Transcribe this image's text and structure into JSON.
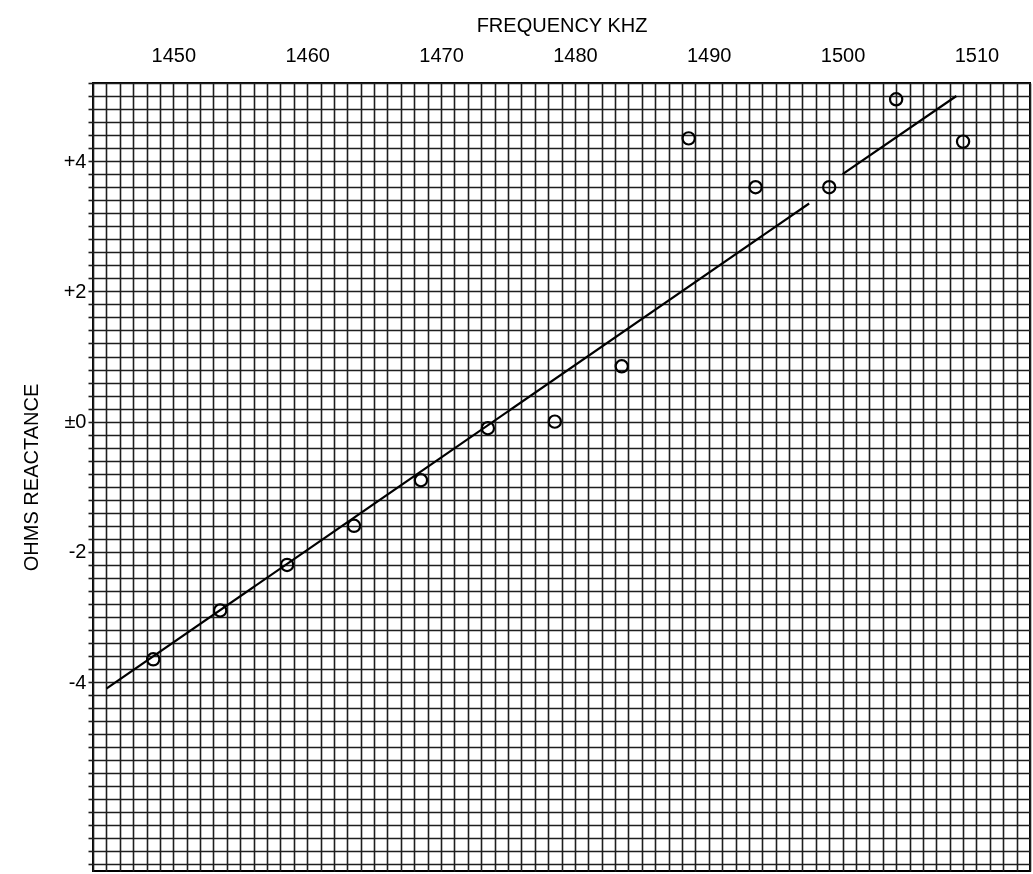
{
  "chart_data": {
    "type": "scatter",
    "xlabel": "FREQUENCY KHZ",
    "ylabel": "OHMS REACTANCE",
    "series": [
      {
        "color": "#000000",
        "marker": "circle",
        "x": [
          1448.5,
          1453.5,
          1458.5,
          1463.5,
          1468.5,
          1473.5,
          1478.5,
          1483.5,
          1488.5,
          1493.5,
          1499,
          1504,
          1509
        ],
        "values": [
          -3.65,
          -2.9,
          -2.2,
          -1.6,
          -0.9,
          -0.1,
          0,
          0.85,
          4.35,
          3.6,
          3.6,
          4.95,
          4.3
        ]
      },
      {
        "type": "line",
        "color": "#000000",
        "marker": "none",
        "line_style": "solid",
        "x": [
          1445,
          1497.5,
          1499,
          1500,
          1508.5
        ],
        "values": [
          -4.1,
          3.35,
          null,
          3.8,
          5.0
        ]
      }
    ],
    "xlim": [
      1444,
      1514
    ],
    "ylim": [
      -6.9,
      5.2
    ],
    "xticks": [
      {
        "value": 1444,
        "label": null
      },
      {
        "value": 1445,
        "label": null
      },
      {
        "value": 1446,
        "label": null
      },
      {
        "value": 1447,
        "label": null
      },
      {
        "value": 1448,
        "label": null
      },
      {
        "value": 1449,
        "label": null
      },
      1450,
      {
        "value": 1451,
        "label": null
      },
      {
        "value": 1452,
        "label": null
      },
      {
        "value": 1453,
        "label": null
      },
      {
        "value": 1454,
        "label": null
      },
      {
        "value": 1455,
        "label": null
      },
      {
        "value": 1456,
        "label": null
      },
      {
        "value": 1457,
        "label": null
      },
      {
        "value": 1458,
        "label": null
      },
      {
        "value": 1459,
        "label": null
      },
      1460,
      {
        "value": 1461,
        "label": null
      },
      {
        "value": 1462,
        "label": null
      },
      {
        "value": 1463,
        "label": null
      },
      {
        "value": 1464,
        "label": null
      },
      {
        "value": 1465,
        "label": null
      },
      {
        "value": 1466,
        "label": null
      },
      {
        "value": 1467,
        "label": null
      },
      {
        "value": 1468,
        "label": null
      },
      {
        "value": 1469,
        "label": null
      },
      1470,
      {
        "value": 1471,
        "label": null
      },
      {
        "value": 1472,
        "label": null
      },
      {
        "value": 1473,
        "label": null
      },
      {
        "value": 1474,
        "label": null
      },
      {
        "value": 1475,
        "label": null
      },
      {
        "value": 1476,
        "label": null
      },
      {
        "value": 1477,
        "label": null
      },
      {
        "value": 1478,
        "label": null
      },
      {
        "value": 1479,
        "label": null
      },
      1480,
      {
        "value": 1481,
        "label": null
      },
      {
        "value": 1482,
        "label": null
      },
      {
        "value": 1483,
        "label": null
      },
      {
        "value": 1484,
        "label": null
      },
      {
        "value": 1485,
        "label": null
      },
      {
        "value": 1486,
        "label": null
      },
      {
        "value": 1487,
        "label": null
      },
      {
        "value": 1488,
        "label": null
      },
      {
        "value": 1489,
        "label": null
      },
      1490,
      {
        "value": 1491,
        "label": null
      },
      {
        "value": 1492,
        "label": null
      },
      {
        "value": 1493,
        "label": null
      },
      {
        "value": 1494,
        "label": null
      },
      {
        "value": 1495,
        "label": null
      },
      {
        "value": 1496,
        "label": null
      },
      {
        "value": 1497,
        "label": null
      },
      {
        "value": 1498,
        "label": null
      },
      {
        "value": 1499,
        "label": null
      },
      1500,
      {
        "value": 1501,
        "label": null
      },
      {
        "value": 1502,
        "label": null
      },
      {
        "value": 1503,
        "label": null
      },
      {
        "value": 1504,
        "label": null
      },
      {
        "value": 1505,
        "label": null
      },
      {
        "value": 1506,
        "label": null
      },
      {
        "value": 1507,
        "label": null
      },
      {
        "value": 1508,
        "label": null
      },
      {
        "value": 1509,
        "label": null
      },
      1510,
      {
        "value": 1511,
        "label": null
      },
      {
        "value": 1512,
        "label": null
      },
      {
        "value": 1513,
        "label": null
      },
      {
        "value": 1514,
        "label": null
      }
    ],
    "yticks": [
      {
        "value": -6.8,
        "label": null
      },
      {
        "value": -6.6,
        "label": null
      },
      {
        "value": -6.4,
        "label": null
      },
      {
        "value": -6.2,
        "label": null
      },
      {
        "value": -6,
        "label": null
      },
      {
        "value": -5.8,
        "label": null
      },
      {
        "value": -5.6,
        "label": null
      },
      {
        "value": -5.4,
        "label": null
      },
      {
        "value": -5.2,
        "label": null
      },
      {
        "value": -5,
        "label": null
      },
      {
        "value": -4.8,
        "label": null
      },
      {
        "value": -4.6,
        "label": null
      },
      {
        "value": -4.4,
        "label": null
      },
      {
        "value": -4.2,
        "label": null
      },
      {
        "value": -4,
        "label": "-4"
      },
      {
        "value": -3.8,
        "label": null
      },
      {
        "value": -3.6,
        "label": null
      },
      {
        "value": -3.4,
        "label": null
      },
      {
        "value": -3.2,
        "label": null
      },
      {
        "value": -3,
        "label": null
      },
      {
        "value": -2.8,
        "label": null
      },
      {
        "value": -2.6,
        "label": null
      },
      {
        "value": -2.4,
        "label": null
      },
      {
        "value": -2.2,
        "label": null
      },
      {
        "value": -2,
        "label": "-2"
      },
      {
        "value": -1.8,
        "label": null
      },
      {
        "value": -1.6,
        "label": null
      },
      {
        "value": -1.4,
        "label": null
      },
      {
        "value": -1.2,
        "label": null
      },
      {
        "value": -1,
        "label": null
      },
      {
        "value": -0.8,
        "label": null
      },
      {
        "value": -0.6,
        "label": null
      },
      {
        "value": -0.4,
        "label": null
      },
      {
        "value": -0.2,
        "label": null
      },
      {
        "value": 0,
        "label": "±0"
      },
      {
        "value": 0.2,
        "label": null
      },
      {
        "value": 0.4,
        "label": null
      },
      {
        "value": 0.6,
        "label": null
      },
      {
        "value": 0.8,
        "label": null
      },
      {
        "value": 1,
        "label": null
      },
      {
        "value": 1.2,
        "label": null
      },
      {
        "value": 1.4,
        "label": null
      },
      {
        "value": 1.6,
        "label": null
      },
      {
        "value": 1.8,
        "label": null
      },
      {
        "value": 2,
        "label": "+2"
      },
      {
        "value": 2.2,
        "label": null
      },
      {
        "value": 2.4,
        "label": null
      },
      {
        "value": 2.6,
        "label": null
      },
      {
        "value": 2.8,
        "label": null
      },
      {
        "value": 3,
        "label": null
      },
      {
        "value": 3.2,
        "label": null
      },
      {
        "value": 3.4,
        "label": null
      },
      {
        "value": 3.6,
        "label": null
      },
      {
        "value": 3.8,
        "label": null
      },
      {
        "value": 4,
        "label": "+4"
      },
      {
        "value": 4.2,
        "label": null
      },
      {
        "value": 4.4,
        "label": null
      },
      {
        "value": 4.6,
        "label": null
      },
      {
        "value": 4.8,
        "label": null
      },
      {
        "value": 5,
        "label": null
      },
      {
        "value": 5.2,
        "label": null
      }
    ],
    "grid": true
  }
}
